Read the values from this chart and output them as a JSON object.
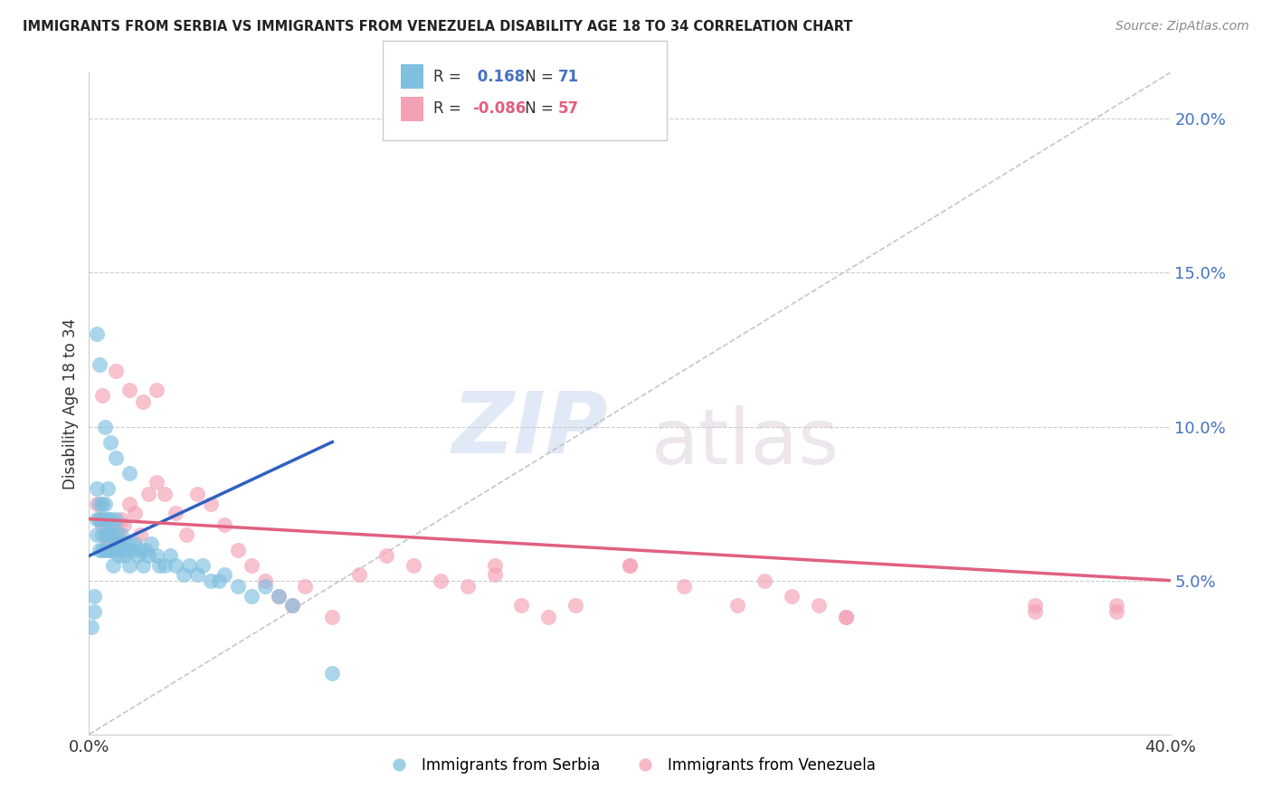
{
  "title": "IMMIGRANTS FROM SERBIA VS IMMIGRANTS FROM VENEZUELA DISABILITY AGE 18 TO 34 CORRELATION CHART",
  "source": "Source: ZipAtlas.com",
  "ylabel": "Disability Age 18 to 34",
  "x_min": 0.0,
  "x_max": 0.4,
  "y_min": 0.0,
  "y_max": 0.215,
  "yticks": [
    0.05,
    0.1,
    0.15,
    0.2
  ],
  "ytick_labels": [
    "5.0%",
    "10.0%",
    "15.0%",
    "20.0%"
  ],
  "xticks": [
    0.0,
    0.05,
    0.1,
    0.15,
    0.2,
    0.25,
    0.3,
    0.35,
    0.4
  ],
  "xtick_labels": [
    "0.0%",
    "",
    "",
    "",
    "",
    "",
    "",
    "",
    "40.0%"
  ],
  "serbia_color": "#7fbfdf",
  "venezuela_color": "#f4a0b5",
  "serbia_R": 0.168,
  "serbia_N": 71,
  "venezuela_R": -0.086,
  "venezuela_N": 57,
  "serbia_line_color": "#3060c0",
  "venezuela_line_color": "#e06080",
  "diagonal_color": "#b8b8b8",
  "watermark_zip": "ZIP",
  "watermark_atlas": "atlas",
  "serbia_x": [
    0.001,
    0.002,
    0.002,
    0.003,
    0.003,
    0.003,
    0.004,
    0.004,
    0.004,
    0.005,
    0.005,
    0.005,
    0.005,
    0.006,
    0.006,
    0.006,
    0.006,
    0.007,
    0.007,
    0.007,
    0.007,
    0.008,
    0.008,
    0.008,
    0.009,
    0.009,
    0.009,
    0.01,
    0.01,
    0.01,
    0.011,
    0.011,
    0.012,
    0.012,
    0.013,
    0.013,
    0.014,
    0.015,
    0.015,
    0.016,
    0.017,
    0.018,
    0.019,
    0.02,
    0.021,
    0.022,
    0.023,
    0.025,
    0.026,
    0.028,
    0.03,
    0.032,
    0.035,
    0.037,
    0.04,
    0.042,
    0.045,
    0.048,
    0.05,
    0.055,
    0.06,
    0.065,
    0.07,
    0.075,
    0.003,
    0.004,
    0.006,
    0.008,
    0.01,
    0.015,
    0.09
  ],
  "serbia_y": [
    0.035,
    0.04,
    0.045,
    0.065,
    0.07,
    0.08,
    0.06,
    0.07,
    0.075,
    0.06,
    0.065,
    0.07,
    0.075,
    0.06,
    0.065,
    0.07,
    0.075,
    0.06,
    0.065,
    0.07,
    0.08,
    0.06,
    0.065,
    0.07,
    0.055,
    0.06,
    0.068,
    0.06,
    0.065,
    0.07,
    0.058,
    0.062,
    0.06,
    0.065,
    0.058,
    0.062,
    0.06,
    0.055,
    0.062,
    0.06,
    0.062,
    0.058,
    0.06,
    0.055,
    0.06,
    0.058,
    0.062,
    0.058,
    0.055,
    0.055,
    0.058,
    0.055,
    0.052,
    0.055,
    0.052,
    0.055,
    0.05,
    0.05,
    0.052,
    0.048,
    0.045,
    0.048,
    0.045,
    0.042,
    0.13,
    0.12,
    0.1,
    0.095,
    0.09,
    0.085,
    0.02
  ],
  "venezuela_x": [
    0.003,
    0.004,
    0.005,
    0.006,
    0.007,
    0.008,
    0.009,
    0.01,
    0.011,
    0.012,
    0.013,
    0.015,
    0.017,
    0.019,
    0.022,
    0.025,
    0.028,
    0.032,
    0.036,
    0.04,
    0.045,
    0.05,
    0.055,
    0.06,
    0.065,
    0.07,
    0.075,
    0.08,
    0.09,
    0.1,
    0.11,
    0.12,
    0.13,
    0.14,
    0.15,
    0.17,
    0.18,
    0.2,
    0.22,
    0.24,
    0.25,
    0.26,
    0.27,
    0.28,
    0.35,
    0.38,
    0.005,
    0.01,
    0.015,
    0.02,
    0.025,
    0.15,
    0.16,
    0.2,
    0.28,
    0.35,
    0.38
  ],
  "venezuela_y": [
    0.075,
    0.07,
    0.068,
    0.065,
    0.062,
    0.065,
    0.068,
    0.062,
    0.065,
    0.07,
    0.068,
    0.075,
    0.072,
    0.065,
    0.078,
    0.082,
    0.078,
    0.072,
    0.065,
    0.078,
    0.075,
    0.068,
    0.06,
    0.055,
    0.05,
    0.045,
    0.042,
    0.048,
    0.038,
    0.052,
    0.058,
    0.055,
    0.05,
    0.048,
    0.052,
    0.038,
    0.042,
    0.055,
    0.048,
    0.042,
    0.05,
    0.045,
    0.042,
    0.038,
    0.042,
    0.042,
    0.11,
    0.118,
    0.112,
    0.108,
    0.112,
    0.055,
    0.042,
    0.055,
    0.038,
    0.04,
    0.04
  ],
  "serbia_line_x": [
    0.0,
    0.09
  ],
  "serbia_line_y": [
    0.058,
    0.095
  ],
  "venezuela_line_x": [
    0.0,
    0.4
  ],
  "venezuela_line_y": [
    0.07,
    0.05
  ]
}
